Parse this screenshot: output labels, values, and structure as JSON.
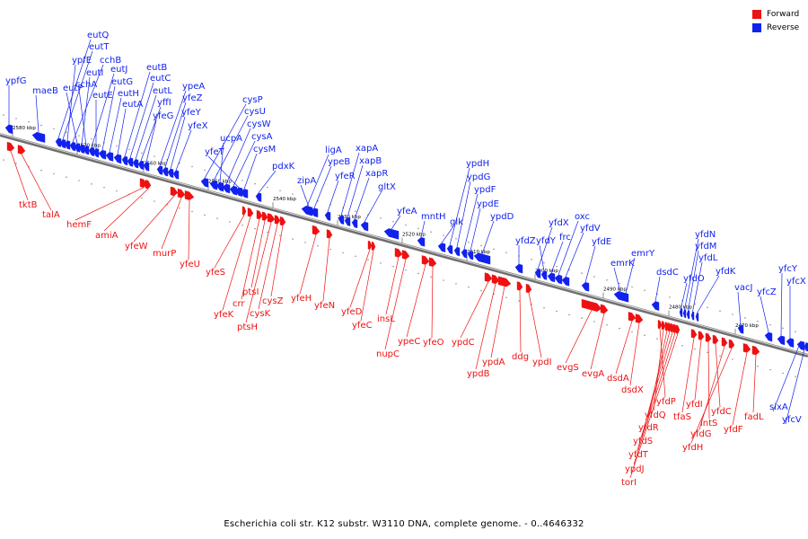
{
  "colors": {
    "forward": "#ee1111",
    "reverse": "#1122ee",
    "backbone": "#888888"
  },
  "legend": {
    "forward_label": "Forward",
    "reverse_label": "Reverse"
  },
  "caption": "Escherichia coli str. K12 substr. W3110 DNA, complete genome. - 0..4646332",
  "ticks": [
    {
      "label": "2580 kbp",
      "kbp": 2580
    },
    {
      "label": "2570 kbp",
      "kbp": 2570
    },
    {
      "label": "2560 kbp",
      "kbp": 2560
    },
    {
      "label": "2550 kbp",
      "kbp": 2550
    },
    {
      "label": "2540 kbp",
      "kbp": 2540
    },
    {
      "label": "2530 kbp",
      "kbp": 2530
    },
    {
      "label": "2520 kbp",
      "kbp": 2520
    },
    {
      "label": "2510 kbp",
      "kbp": 2510
    },
    {
      "label": "2500 kbp",
      "kbp": 2500
    },
    {
      "label": "2490 kbp",
      "kbp": 2490
    },
    {
      "label": "2480 kbp",
      "kbp": 2480
    },
    {
      "label": "2470 kbp",
      "kbp": 2470
    }
  ],
  "genes_reverse": [
    "ypfG",
    "maeB",
    "eutQ",
    "eutT",
    "ypfE",
    "cchB",
    "eutP",
    "eutI",
    "cchA",
    "eutJ",
    "eutE",
    "eutG",
    "eutH",
    "eutA",
    "eutB",
    "eutC",
    "eutL",
    "yffI",
    "yfeG",
    "ypeA",
    "yfeZ",
    "yfeY",
    "yfeX",
    "cysP",
    "cysU",
    "ucpA",
    "cysW",
    "cysA",
    "yfeT",
    "cysM",
    "pdxK",
    "ligA",
    "ypeB",
    "zipA",
    "yfeR",
    "xapA",
    "xapB",
    "xapR",
    "gltX",
    "yfeA",
    "mntH",
    "ypdH",
    "ypdG",
    "ypdF",
    "glk",
    "ypdE",
    "ypdD",
    "yfdZ",
    "yfdX",
    "yfdY",
    "frc",
    "oxc",
    "yfdV",
    "yfdE",
    "emrY",
    "emrK",
    "dsdC",
    "yfdN",
    "yfdM",
    "yfdL",
    "yfdO",
    "yfdK",
    "vacJ",
    "yfcZ",
    "yfcY",
    "yfcX",
    "sixA",
    "yfcV"
  ],
  "genes_forward": [
    "tktB",
    "talA",
    "hemF",
    "amiA",
    "yfeW",
    "murP",
    "yfeU",
    "yfeS",
    "yfeK",
    "crr",
    "ptsI",
    "ptsH",
    "cysK",
    "cysZ",
    "yfeH",
    "yfeN",
    "yfeD",
    "yfeC",
    "insL",
    "nupC",
    "ypeC",
    "yfeO",
    "ypdC",
    "ypdB",
    "ypdA",
    "ddg",
    "ypdI",
    "evgS",
    "evgA",
    "dsdA",
    "dsdX",
    "yfdP",
    "yfdQ",
    "yfdR",
    "yfdS",
    "yfdT",
    "ypdJ",
    "torI",
    "tfaS",
    "yfdI",
    "intS",
    "yfdC",
    "yfdG",
    "yfdH",
    "yfdF",
    "fadL"
  ]
}
